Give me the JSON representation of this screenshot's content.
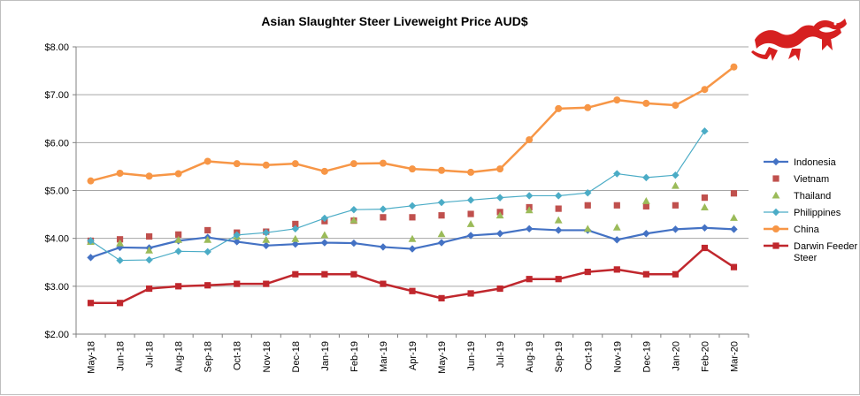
{
  "chart_data": {
    "type": "line",
    "title": "Asian Slaughter Steer Liveweight Price AUD$",
    "xlabel": "",
    "ylabel": "",
    "ylim": [
      2.0,
      8.0
    ],
    "ytick_values": [
      2,
      3,
      4,
      5,
      6,
      7,
      8
    ],
    "ytick_labels": [
      "$2.00",
      "$3.00",
      "$4.00",
      "$5.00",
      "$6.00",
      "$7.00",
      "$8.00"
    ],
    "categories": [
      "May-18",
      "Jun-18",
      "Jul-18",
      "Aug-18",
      "Sep-18",
      "Oct-18",
      "Nov-18",
      "Dec-18",
      "Jan-19",
      "Feb-19",
      "Mar-19",
      "Apr-19",
      "May-19",
      "Jun-19",
      "Jul-19",
      "Aug-19",
      "Sep-19",
      "Oct-19",
      "Nov-19",
      "Dec-19",
      "Jan-20",
      "Feb-20",
      "Mar-20"
    ],
    "grid": true,
    "legend_position": "right",
    "series": [
      {
        "name": "Indonesia",
        "color": "#4472C4",
        "marker": "diamond",
        "line": true,
        "line_width": 2.2,
        "values": [
          3.6,
          3.81,
          3.8,
          3.95,
          4.02,
          3.93,
          3.85,
          3.88,
          3.91,
          3.9,
          3.82,
          3.78,
          3.91,
          4.06,
          4.1,
          4.2,
          4.17,
          4.17,
          3.97,
          4.1,
          4.19,
          4.22,
          4.19
        ]
      },
      {
        "name": "Vietnam",
        "color": "#C0504D",
        "marker": "square",
        "line": false,
        "values": [
          3.95,
          3.98,
          4.04,
          4.08,
          4.17,
          4.12,
          4.14,
          4.3,
          4.36,
          4.37,
          4.44,
          4.44,
          4.48,
          4.51,
          4.55,
          4.65,
          4.62,
          4.69,
          4.69,
          4.67,
          4.69,
          4.85,
          4.94
        ]
      },
      {
        "name": "Thailand",
        "color": "#9BBB59",
        "marker": "triangle",
        "line": false,
        "values": [
          3.93,
          3.9,
          3.75,
          3.97,
          3.97,
          4.04,
          3.97,
          3.99,
          4.07,
          4.38,
          null,
          3.99,
          4.09,
          4.3,
          4.48,
          4.59,
          4.38,
          4.2,
          4.23,
          4.78,
          5.1,
          4.65,
          4.43
        ]
      },
      {
        "name": "Philippines",
        "color": "#4BACC6",
        "marker": "diamond",
        "line": true,
        "line_width": 1.2,
        "values": [
          3.95,
          3.54,
          3.55,
          3.73,
          3.72,
          4.07,
          4.12,
          4.2,
          4.42,
          4.6,
          4.61,
          4.68,
          4.75,
          4.8,
          4.85,
          4.89,
          4.89,
          4.95,
          5.35,
          5.27,
          5.32,
          6.24,
          null
        ]
      },
      {
        "name": "China",
        "color": "#F79646",
        "marker": "circle",
        "line": true,
        "line_width": 2.5,
        "values": [
          5.2,
          5.36,
          5.3,
          5.35,
          5.61,
          5.56,
          5.53,
          5.56,
          5.4,
          5.56,
          5.57,
          5.45,
          5.42,
          5.38,
          5.45,
          6.06,
          6.71,
          6.73,
          6.89,
          6.82,
          6.78,
          7.11,
          7.58
        ]
      },
      {
        "name": "Darwin Feeder Steer",
        "color": "#C0272D",
        "marker": "square",
        "line": true,
        "line_width": 2.5,
        "values": [
          2.65,
          2.65,
          2.95,
          3.0,
          3.02,
          3.05,
          3.05,
          3.25,
          3.25,
          3.25,
          3.05,
          2.9,
          2.75,
          2.85,
          2.95,
          3.15,
          3.15,
          3.3,
          3.35,
          3.25,
          3.25,
          3.8,
          3.4
        ]
      }
    ]
  }
}
